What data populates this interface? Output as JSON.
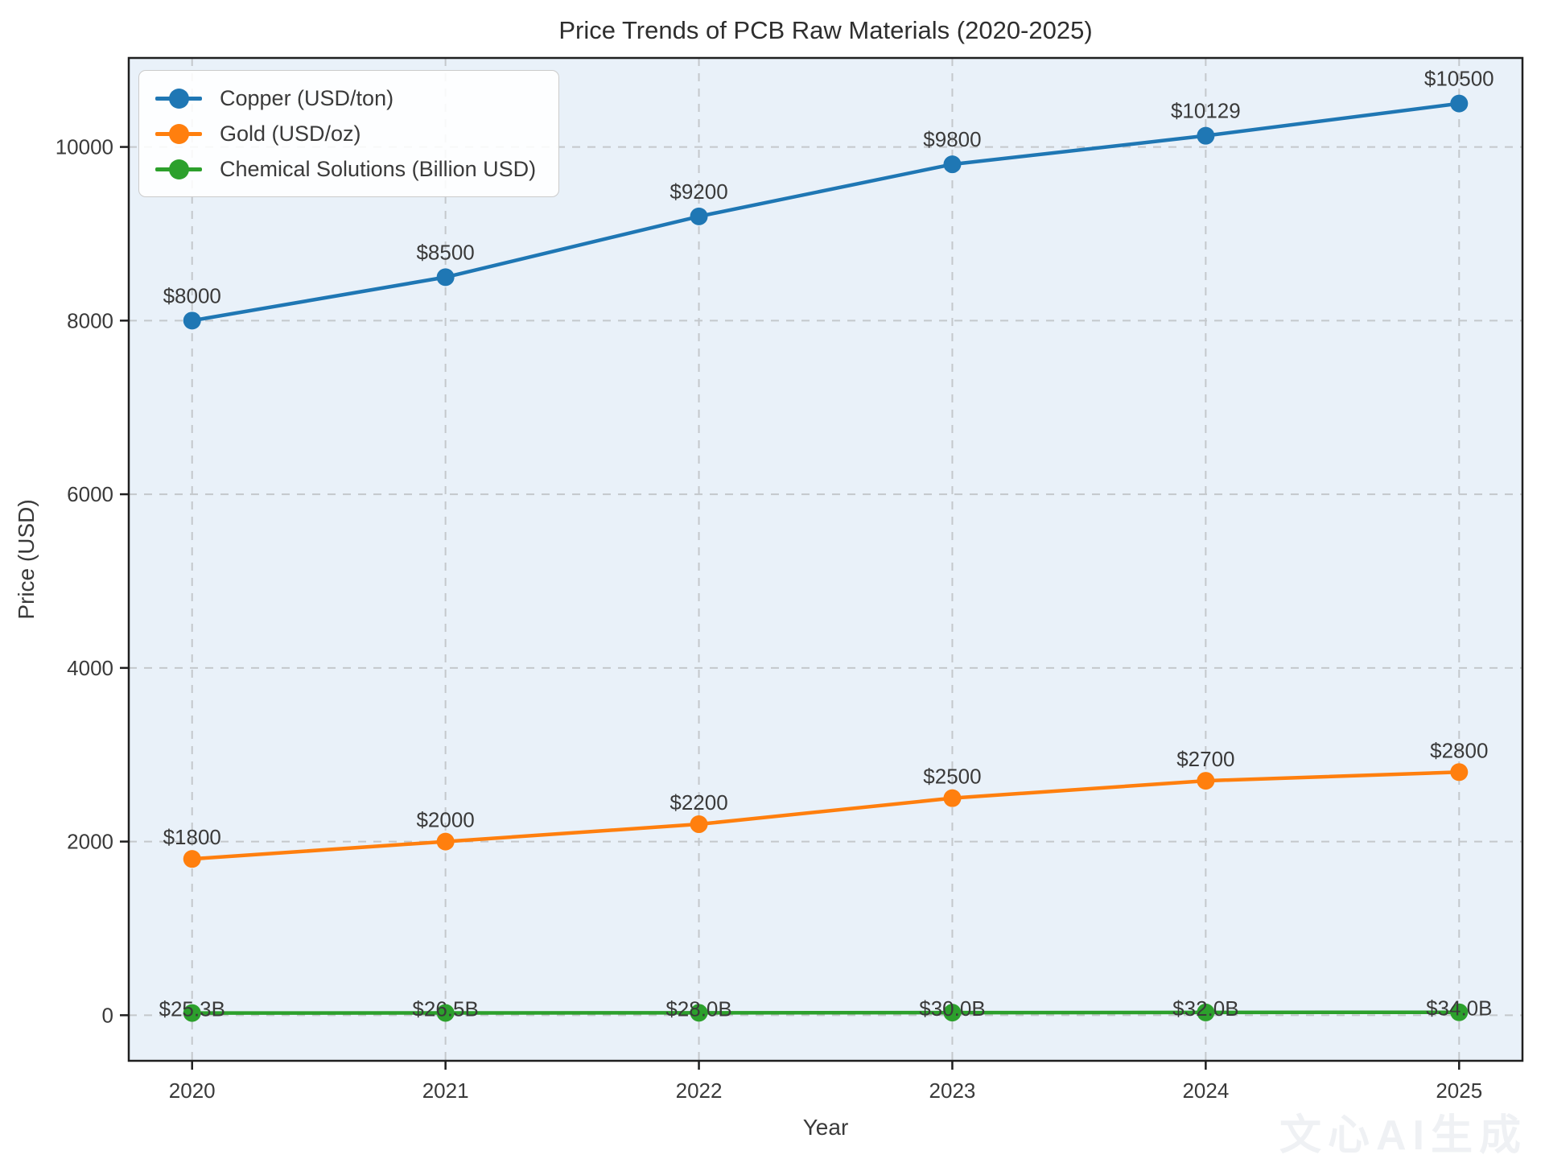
{
  "chart_data": {
    "type": "line",
    "title": "Price Trends of PCB Raw Materials (2020-2025)",
    "xlabel": "Year",
    "ylabel": "Price (USD)",
    "categories": [
      "2020",
      "2021",
      "2022",
      "2023",
      "2024",
      "2025"
    ],
    "x_numeric": [
      0,
      1,
      2,
      3,
      4,
      5
    ],
    "xlim": [
      -0.25,
      5.25
    ],
    "ylim": [
      -525,
      11025
    ],
    "y_ticks": [
      0,
      2000,
      4000,
      6000,
      8000,
      10000
    ],
    "y_tick_labels": [
      "0",
      "2000",
      "4000",
      "6000",
      "8000",
      "10000"
    ],
    "grid": true,
    "grid_style": "dashed",
    "legend_position": "upper-left",
    "plot_bg_color": "#e9f1f9",
    "grid_color": "#c4c8cc",
    "spine_color": "#1f1f1f",
    "series": [
      {
        "name": "Copper (USD/ton)",
        "color": "#1f77b4",
        "values": [
          8000,
          8500,
          9200,
          9800,
          10129,
          10500
        ],
        "point_labels": [
          "$8000",
          "$8500",
          "$9200",
          "$9800",
          "$10129",
          "$10500"
        ],
        "label_dy": -22
      },
      {
        "name": "Gold (USD/oz)",
        "color": "#ff7f0e",
        "values": [
          1800,
          2000,
          2200,
          2500,
          2700,
          2800
        ],
        "point_labels": [
          "$1800",
          "$2000",
          "$2200",
          "$2500",
          "$2700",
          "$2800"
        ],
        "label_dy": -18
      },
      {
        "name": "Chemical Solutions (Billion USD)",
        "color": "#2ca02c",
        "values": [
          25.3,
          26.5,
          28.0,
          30.0,
          32.0,
          34.0
        ],
        "point_labels": [
          "$25.3B",
          "$26.5B",
          "$28.0B",
          "$30.0B",
          "$32.0B",
          "$34.0B"
        ],
        "label_dy": 4
      }
    ],
    "watermark": "文心AI生成"
  }
}
